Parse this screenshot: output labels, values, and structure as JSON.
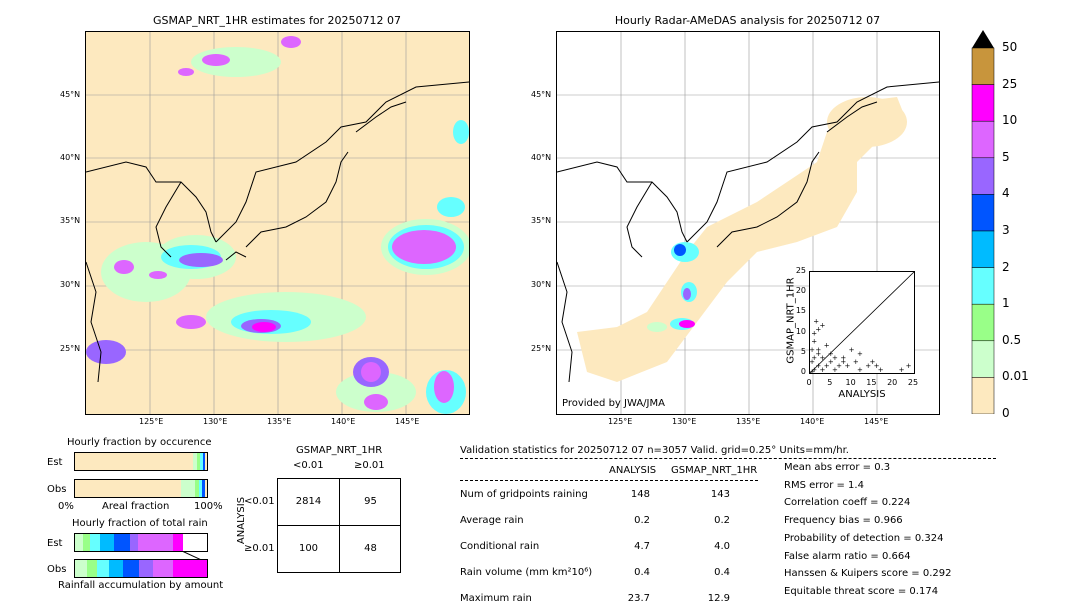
{
  "left_map": {
    "title": "GSMAP_NRT_1HR estimates for 20250712 07",
    "lat_labels": [
      "45°N",
      "40°N",
      "35°N",
      "30°N",
      "25°N"
    ],
    "lon_labels": [
      "125°E",
      "130°E",
      "135°E",
      "140°E",
      "145°E"
    ]
  },
  "right_map": {
    "title": "Hourly Radar-AMeDAS analysis for 20250712 07",
    "lat_labels": [
      "45°N",
      "40°N",
      "35°N",
      "30°N",
      "25°N"
    ],
    "lon_labels": [
      "125°E",
      "130°E",
      "135°E",
      "140°E",
      "145°E"
    ],
    "credit": "Provided by JWA/JMA"
  },
  "colorbar": {
    "labels": [
      "50",
      "25",
      "10",
      "5",
      "4",
      "3",
      "2",
      "1",
      "0.5",
      "0.01",
      "0"
    ],
    "colors": [
      "#c8953c",
      "#ff00ff",
      "#dd66ff",
      "#9966ff",
      "#0055ff",
      "#00bbff",
      "#66ffff",
      "#99ff88",
      "#ccffcc",
      "#fde9bf"
    ]
  },
  "chart_data": [
    {
      "type": "scatter",
      "title": "",
      "xlabel": "ANALYSIS",
      "ylabel": "GSMAP_NRT_1HR",
      "xlim": [
        0,
        25
      ],
      "ylim": [
        0,
        25
      ],
      "xticks": [
        "0",
        "5",
        "10",
        "15",
        "20",
        "25"
      ],
      "yticks": [
        "0",
        "5",
        "10",
        "15",
        "20",
        "25"
      ],
      "points": [
        [
          0.5,
          3
        ],
        [
          1,
          8
        ],
        [
          1.5,
          13
        ],
        [
          2,
          11
        ],
        [
          3,
          12
        ],
        [
          4,
          7
        ],
        [
          5,
          5
        ],
        [
          6,
          4
        ],
        [
          8,
          3
        ],
        [
          9,
          2
        ],
        [
          10,
          6
        ],
        [
          12,
          1
        ],
        [
          14,
          2
        ],
        [
          15,
          3
        ],
        [
          16,
          2
        ],
        [
          17,
          1
        ],
        [
          1,
          1
        ],
        [
          2,
          2
        ],
        [
          0.5,
          0.5
        ],
        [
          3,
          1
        ],
        [
          2,
          5
        ],
        [
          1,
          4
        ],
        [
          4,
          2
        ],
        [
          6,
          1
        ],
        [
          7,
          2
        ],
        [
          5,
          3
        ],
        [
          3,
          4
        ],
        [
          2,
          6
        ],
        [
          1,
          10
        ],
        [
          0.5,
          6
        ],
        [
          8,
          4
        ],
        [
          11,
          3
        ],
        [
          12,
          5
        ],
        [
          22,
          1
        ],
        [
          23.7,
          2
        ]
      ]
    },
    {
      "type": "bar",
      "title": "Hourly fraction by occurence",
      "categories": [
        "Est",
        "Obs"
      ],
      "xlabel": "Areal fraction",
      "x_ticks": [
        "0%",
        "100%"
      ]
    },
    {
      "type": "bar",
      "title": "Hourly fraction of total rain",
      "categories": [
        "Est",
        "Obs"
      ],
      "xlabel": "Rainfall accumulation by amount"
    },
    {
      "type": "table",
      "title": "GSMAP_NRT_1HR",
      "col_headers": [
        "<0.01",
        "≥0.01"
      ],
      "row_axis": "ANALYSIS",
      "row_headers": [
        "<0.01",
        "≥0.01"
      ],
      "cells": [
        [
          "2814",
          "95"
        ],
        [
          "100",
          "48"
        ]
      ]
    }
  ],
  "validation": {
    "header": "Validation statistics for 20250712 07  n=3057 Valid. grid=0.25° Units=mm/hr.",
    "col1": "ANALYSIS",
    "col2": "GSMAP_NRT_1HR",
    "rows": [
      {
        "label": "Num of gridpoints raining",
        "a": "148",
        "b": "143"
      },
      {
        "label": "Average rain",
        "a": "0.2",
        "b": "0.2"
      },
      {
        "label": "Conditional rain",
        "a": "4.7",
        "b": "4.0"
      },
      {
        "label": "Rain volume (mm km²10⁶)",
        "a": "0.4",
        "b": "0.4"
      },
      {
        "label": "Maximum rain",
        "a": "23.7",
        "b": "12.9"
      }
    ],
    "scores": [
      "Mean abs error =    0.3",
      "RMS error =    1.4",
      "Correlation coeff =  0.224",
      "Frequency bias =  0.966",
      "Probability of detection =  0.324",
      "False alarm ratio =  0.664",
      "Hanssen & Kuipers score =  0.292",
      "Equitable threat score =  0.174"
    ]
  }
}
